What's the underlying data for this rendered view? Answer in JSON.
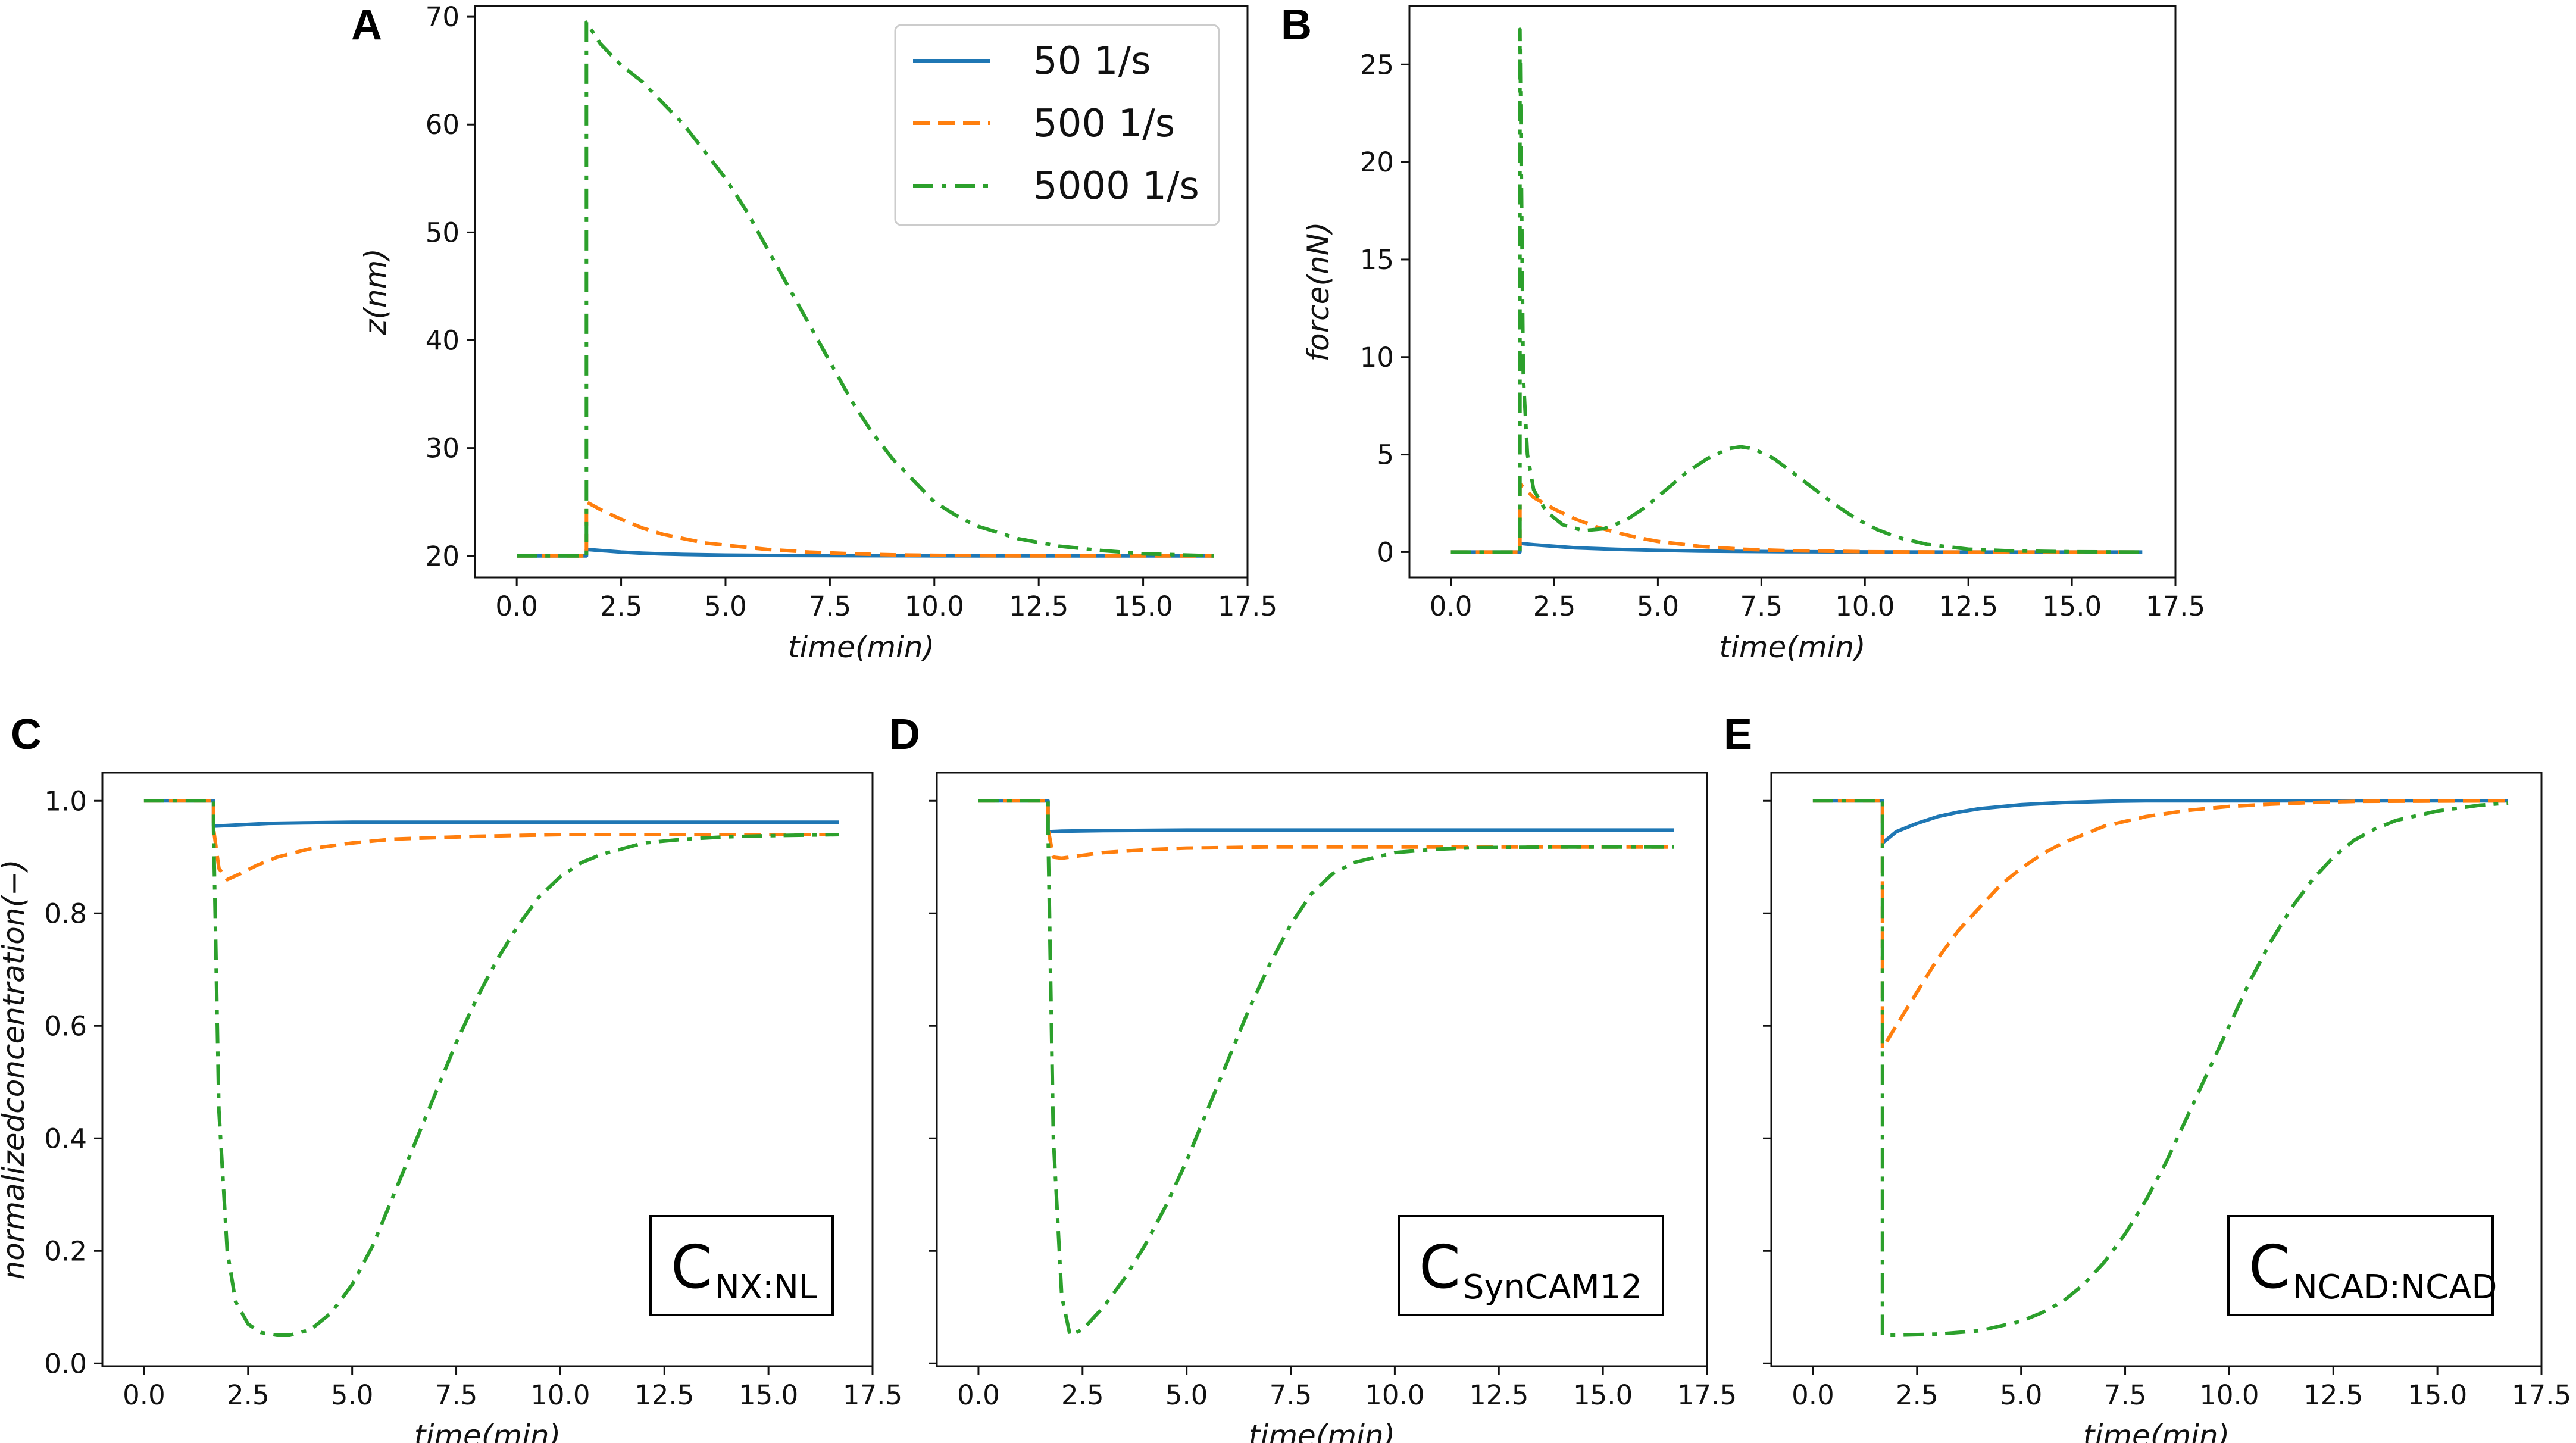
{
  "figure": {
    "legend": {
      "placement": "top-right of panel A",
      "entries": [
        {
          "label": "50 1/s",
          "color": "#1f77b4",
          "dash": "solid"
        },
        {
          "label": "500 1/s",
          "color": "#ff7f0e",
          "dash": "dashed"
        },
        {
          "label": "5000 1/s",
          "color": "#2ca02c",
          "dash": "dashdot"
        }
      ]
    }
  },
  "chart_data": [
    {
      "id": "A",
      "type": "line",
      "panel_letter": "A",
      "xlabel": "time(min)",
      "ylabel": "z(nm)",
      "xlim": [
        -1,
        17.5
      ],
      "ylim": [
        18,
        71
      ],
      "xticks": [
        "0.0",
        "2.5",
        "5.0",
        "7.5",
        "10.0",
        "12.5",
        "15.0",
        "17.5"
      ],
      "yticks": [
        "20",
        "30",
        "40",
        "50",
        "60",
        "70"
      ],
      "show_yticklabels": true,
      "annotation": null,
      "series": [
        {
          "name": "50 1/s",
          "x": [
            0,
            1.67,
            1.67,
            2,
            2.5,
            3,
            3.5,
            4,
            5,
            6,
            8,
            10,
            12,
            14,
            16.7
          ],
          "y": [
            20,
            20,
            20.6,
            20.5,
            20.35,
            20.25,
            20.18,
            20.13,
            20.07,
            20.04,
            20.02,
            20.01,
            20,
            20,
            20
          ]
        },
        {
          "name": "500 1/s",
          "x": [
            0,
            1.67,
            1.67,
            2,
            2.5,
            3,
            3.5,
            4,
            4.5,
            5,
            6,
            7,
            8,
            9,
            10,
            12,
            14,
            16.7
          ],
          "y": [
            20,
            20,
            25,
            24.3,
            23.4,
            22.6,
            22,
            21.6,
            21.2,
            21,
            20.6,
            20.35,
            20.2,
            20.1,
            20.05,
            20,
            20,
            20
          ]
        },
        {
          "name": "5000 1/s",
          "x": [
            0,
            1.67,
            1.67,
            2,
            2.5,
            3,
            3.5,
            4,
            4.5,
            5,
            5.5,
            6,
            6.5,
            7,
            7.5,
            8,
            8.5,
            9,
            9.5,
            10,
            10.5,
            11,
            12,
            13,
            14,
            15,
            16.7
          ],
          "y": [
            20,
            20,
            69.5,
            67.5,
            65.5,
            64,
            62,
            60,
            57.5,
            55,
            52,
            48.5,
            45,
            41.5,
            38,
            34.5,
            31.5,
            29,
            27,
            25,
            23.8,
            22.8,
            21.6,
            20.9,
            20.5,
            20.2,
            20
          ]
        }
      ]
    },
    {
      "id": "B",
      "type": "line",
      "panel_letter": "B",
      "xlabel": "time(min)",
      "ylabel": "force(nN)",
      "xlim": [
        -1,
        17.5
      ],
      "ylim": [
        -1.3,
        28
      ],
      "xticks": [
        "0.0",
        "2.5",
        "5.0",
        "7.5",
        "10.0",
        "12.5",
        "15.0",
        "17.5"
      ],
      "yticks": [
        "0",
        "5",
        "10",
        "15",
        "20",
        "25"
      ],
      "show_yticklabels": true,
      "annotation": null,
      "series": [
        {
          "name": "50 1/s",
          "x": [
            0,
            1.67,
            1.67,
            2,
            2.5,
            3,
            4,
            5,
            6,
            8,
            10,
            12,
            16.7
          ],
          "y": [
            0,
            0,
            0.45,
            0.38,
            0.3,
            0.22,
            0.14,
            0.09,
            0.05,
            0.02,
            0.01,
            0,
            0
          ]
        },
        {
          "name": "500 1/s",
          "x": [
            0,
            1.67,
            1.67,
            2,
            2.5,
            3,
            3.5,
            4,
            4.5,
            5,
            6,
            7,
            8,
            10,
            12,
            16.7
          ],
          "y": [
            0,
            0,
            3.5,
            2.8,
            2.2,
            1.7,
            1.3,
            1.0,
            0.75,
            0.55,
            0.3,
            0.15,
            0.08,
            0.02,
            0,
            0
          ]
        },
        {
          "name": "5000 1/s",
          "x": [
            0,
            1.67,
            1.67,
            1.75,
            1.85,
            2,
            2.3,
            2.7,
            3.2,
            3.7,
            4.2,
            4.7,
            5.2,
            5.7,
            6.2,
            6.7,
            7,
            7.3,
            7.8,
            8.3,
            8.8,
            9.3,
            9.8,
            10.3,
            10.8,
            11.5,
            12.5,
            13.5,
            15,
            16.7
          ],
          "y": [
            0,
            0,
            26.8,
            9,
            5,
            3.2,
            2.1,
            1.4,
            1.1,
            1.2,
            1.6,
            2.3,
            3.2,
            4.1,
            4.8,
            5.3,
            5.4,
            5.3,
            4.8,
            4.0,
            3.2,
            2.4,
            1.7,
            1.15,
            0.75,
            0.4,
            0.15,
            0.06,
            0.02,
            0
          ]
        }
      ]
    },
    {
      "id": "C",
      "type": "line",
      "panel_letter": "C",
      "xlabel": "time(min)",
      "ylabel": "normalizedconcentration(−)",
      "xlim": [
        -1,
        17.5
      ],
      "ylim": [
        -0.005,
        1.05
      ],
      "xticks": [
        "0.0",
        "2.5",
        "5.0",
        "7.5",
        "10.0",
        "12.5",
        "15.0",
        "17.5"
      ],
      "yticks": [
        "0.0",
        "0.2",
        "0.4",
        "0.6",
        "0.8",
        "1.0"
      ],
      "show_yticklabels": true,
      "annotation": {
        "main": "C",
        "sub": "NX:NL"
      },
      "series": [
        {
          "name": "50 1/s",
          "x": [
            0,
            1.67,
            1.67,
            2,
            2.5,
            3,
            4,
            5,
            6,
            8,
            10,
            16.7
          ],
          "y": [
            1.0,
            1.0,
            0.955,
            0.956,
            0.958,
            0.96,
            0.961,
            0.962,
            0.962,
            0.962,
            0.962,
            0.962
          ]
        },
        {
          "name": "500 1/s",
          "x": [
            0,
            1.67,
            1.67,
            1.8,
            2,
            2.3,
            2.7,
            3.2,
            4,
            5,
            6,
            8,
            10,
            12,
            16.7
          ],
          "y": [
            1.0,
            1.0,
            0.95,
            0.88,
            0.86,
            0.87,
            0.885,
            0.9,
            0.915,
            0.925,
            0.932,
            0.937,
            0.94,
            0.94,
            0.94
          ]
        },
        {
          "name": "5000 1/s",
          "x": [
            0,
            1.67,
            1.67,
            1.8,
            2,
            2.2,
            2.5,
            2.8,
            3.2,
            3.5,
            4,
            4.5,
            5,
            5.5,
            6,
            6.5,
            7,
            7.5,
            8,
            8.5,
            9,
            9.5,
            10,
            10.5,
            11,
            11.5,
            12,
            13,
            14,
            15,
            16.7
          ],
          "y": [
            1.0,
            1.0,
            0.95,
            0.45,
            0.2,
            0.11,
            0.07,
            0.055,
            0.05,
            0.05,
            0.06,
            0.09,
            0.14,
            0.21,
            0.3,
            0.39,
            0.48,
            0.57,
            0.65,
            0.72,
            0.78,
            0.83,
            0.865,
            0.89,
            0.905,
            0.915,
            0.925,
            0.932,
            0.936,
            0.938,
            0.94
          ]
        }
      ]
    },
    {
      "id": "D",
      "type": "line",
      "panel_letter": "D",
      "xlabel": "time(min)",
      "ylabel": "",
      "xlim": [
        -1,
        17.5
      ],
      "ylim": [
        -0.005,
        1.05
      ],
      "xticks": [
        "0.0",
        "2.5",
        "5.0",
        "7.5",
        "10.0",
        "12.5",
        "15.0",
        "17.5"
      ],
      "yticks": [
        "",
        "",
        "",
        "",
        "",
        ""
      ],
      "show_yticklabels": false,
      "annotation": {
        "main": "C",
        "sub": "SynCAM12"
      },
      "series": [
        {
          "name": "50 1/s",
          "x": [
            0,
            1.67,
            1.67,
            2,
            3,
            5,
            8,
            16.7
          ],
          "y": [
            1.0,
            1.0,
            0.945,
            0.946,
            0.947,
            0.948,
            0.948,
            0.948
          ]
        },
        {
          "name": "500 1/s",
          "x": [
            0,
            1.67,
            1.67,
            1.8,
            2,
            2.5,
            3,
            4,
            5,
            7,
            10,
            16.7
          ],
          "y": [
            1.0,
            1.0,
            0.95,
            0.9,
            0.898,
            0.903,
            0.908,
            0.913,
            0.916,
            0.918,
            0.918,
            0.918
          ]
        },
        {
          "name": "5000 1/s",
          "x": [
            0,
            1.67,
            1.67,
            1.8,
            2,
            2.2,
            2.5,
            3,
            3.5,
            4,
            4.5,
            5,
            5.5,
            6,
            6.5,
            7,
            7.5,
            8,
            8.5,
            9,
            10,
            11,
            12,
            14,
            16.7
          ],
          "y": [
            1.0,
            1.0,
            0.95,
            0.4,
            0.12,
            0.05,
            0.06,
            0.1,
            0.15,
            0.21,
            0.28,
            0.36,
            0.45,
            0.54,
            0.63,
            0.71,
            0.78,
            0.835,
            0.87,
            0.89,
            0.908,
            0.914,
            0.917,
            0.918,
            0.918
          ]
        }
      ]
    },
    {
      "id": "E",
      "type": "line",
      "panel_letter": "E",
      "xlabel": "time(min)",
      "ylabel": "",
      "xlim": [
        -1,
        17.5
      ],
      "ylim": [
        -0.005,
        1.05
      ],
      "xticks": [
        "0.0",
        "2.5",
        "5.0",
        "7.5",
        "10.0",
        "12.5",
        "15.0",
        "17.5"
      ],
      "yticks": [
        "",
        "",
        "",
        "",
        "",
        ""
      ],
      "show_yticklabels": false,
      "annotation": {
        "main": "C",
        "sub": "NCAD:NCAD"
      },
      "series": [
        {
          "name": "50 1/s",
          "x": [
            0,
            1.67,
            1.67,
            2,
            2.5,
            3,
            3.5,
            4,
            5,
            6,
            7,
            8,
            10,
            16.7
          ],
          "y": [
            1.0,
            1.0,
            0.925,
            0.945,
            0.96,
            0.972,
            0.98,
            0.986,
            0.993,
            0.997,
            0.999,
            1.0,
            1.0,
            1.0
          ]
        },
        {
          "name": "500 1/s",
          "x": [
            0,
            1.67,
            1.67,
            2,
            2.5,
            3,
            3.5,
            4,
            4.5,
            5,
            5.5,
            6,
            7,
            8,
            9,
            10,
            11,
            12,
            13,
            16.7
          ],
          "y": [
            1.0,
            1.0,
            0.56,
            0.6,
            0.66,
            0.72,
            0.77,
            0.81,
            0.85,
            0.88,
            0.905,
            0.925,
            0.955,
            0.972,
            0.983,
            0.99,
            0.994,
            0.997,
            0.999,
            1.0
          ]
        },
        {
          "name": "5000 1/s",
          "x": [
            0,
            1.67,
            1.67,
            2,
            3,
            4,
            5,
            5.5,
            6,
            6.5,
            7,
            7.5,
            8,
            8.5,
            9,
            9.5,
            10,
            10.5,
            11,
            11.5,
            12,
            12.5,
            13,
            13.5,
            14,
            15,
            16,
            16.7
          ],
          "y": [
            1.0,
            1.0,
            0.05,
            0.05,
            0.052,
            0.058,
            0.075,
            0.09,
            0.11,
            0.14,
            0.18,
            0.23,
            0.29,
            0.36,
            0.44,
            0.52,
            0.6,
            0.68,
            0.75,
            0.81,
            0.86,
            0.9,
            0.93,
            0.95,
            0.965,
            0.982,
            0.992,
            0.996
          ]
        }
      ]
    }
  ]
}
